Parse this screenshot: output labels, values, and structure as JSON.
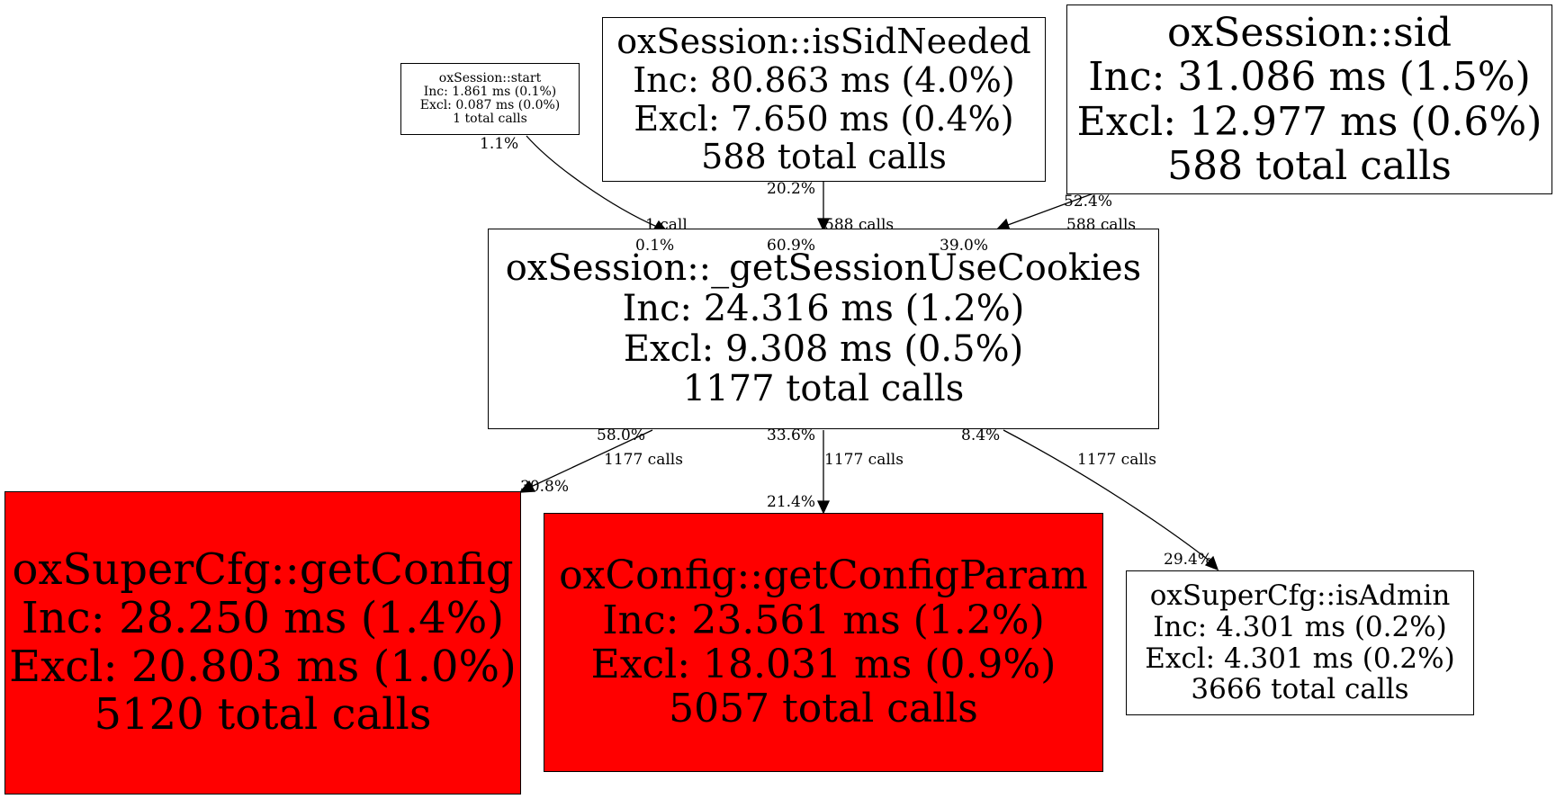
{
  "nodes": {
    "start": {
      "lines": [
        "oxSession::start",
        "Inc: 1.861 ms (0.1%)",
        "Excl: 0.087 ms (0.0%)",
        "1 total calls"
      ],
      "fill": "#ffffff"
    },
    "issid": {
      "lines": [
        "oxSession::isSidNeeded",
        "Inc: 80.863 ms (4.0%)",
        "Excl: 7.650 ms (0.4%)",
        "588 total calls"
      ],
      "fill": "#ffffff"
    },
    "sid": {
      "lines": [
        "oxSession::sid",
        "Inc: 31.086 ms (1.5%)",
        "Excl: 12.977 ms (0.6%)",
        "588 total calls"
      ],
      "fill": "#ffffff"
    },
    "center": {
      "lines": [
        "oxSession::_getSessionUseCookies",
        "Inc: 24.316 ms (1.2%)",
        "Excl: 9.308 ms (0.5%)",
        "1177 total calls"
      ],
      "fill": "#ffffff"
    },
    "getcfg": {
      "lines": [
        "oxSuperCfg::getConfig",
        "Inc: 28.250 ms (1.4%)",
        "Excl: 20.803 ms (1.0%)",
        "5120 total calls"
      ],
      "fill": "#ff0000"
    },
    "getparam": {
      "lines": [
        "oxConfig::getConfigParam",
        "Inc: 23.561 ms (1.2%)",
        "Excl: 18.031 ms (0.9%)",
        "5057 total calls"
      ],
      "fill": "#ff0000"
    },
    "isadmin": {
      "lines": [
        "oxSuperCfg::isAdmin",
        "Inc: 4.301 ms (0.2%)",
        "Excl: 4.301 ms (0.2%)",
        "3666 total calls"
      ],
      "fill": "#ffffff"
    }
  },
  "edges": [
    {
      "from": "start",
      "to": "center",
      "tail": "1.1%",
      "calls": "1 call",
      "head": "0.1%"
    },
    {
      "from": "issid",
      "to": "center",
      "tail": "20.2%",
      "calls": "588 calls",
      "head": "60.9%"
    },
    {
      "from": "sid",
      "to": "center",
      "tail": "52.4%",
      "calls": "588 calls",
      "head": "39.0%"
    },
    {
      "from": "center",
      "to": "getcfg",
      "tail": "58.0%",
      "calls": "1177 calls",
      "head": "30.8%"
    },
    {
      "from": "center",
      "to": "getparam",
      "tail": "33.6%",
      "calls": "1177 calls",
      "head": "21.4%"
    },
    {
      "from": "center",
      "to": "isadmin",
      "tail": "8.4%",
      "calls": "1177 calls",
      "head": "29.4%"
    }
  ]
}
